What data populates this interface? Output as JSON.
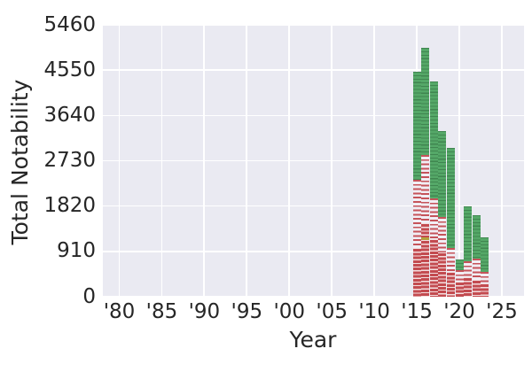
{
  "figure": {
    "background": "#ffffff",
    "plot_background": "#eaeaf2",
    "grid_color": "#ffffff",
    "text_color": "#262626"
  },
  "chart_data": {
    "type": "bar",
    "stacked": true,
    "title": "",
    "xlabel": "Year",
    "ylabel": "Total Notability",
    "grid": true,
    "legend": false,
    "xlim": [
      1978,
      2027.7
    ],
    "ylim": [
      0,
      5460
    ],
    "yticks": [
      0,
      910,
      1820,
      2730,
      3640,
      4550,
      5460
    ],
    "xticks": {
      "values": [
        1980,
        1985,
        1990,
        1995,
        2000,
        2005,
        2010,
        2015,
        2020,
        2025
      ],
      "labels": [
        "'80",
        "'85",
        "'90",
        "'95",
        "'00",
        "'05",
        "'10",
        "'15",
        "'20",
        "'25"
      ]
    },
    "categories": [
      2015,
      2016,
      2017,
      2018,
      2019,
      2020,
      2021,
      2022,
      2023
    ],
    "series": [
      {
        "name": "red-dense-lower",
        "style": "red-dense",
        "color": "#c44e52",
        "values": [
          980,
          1140,
          1155,
          890,
          490,
          300,
          390,
          340,
          265
        ]
      },
      {
        "name": "yellow-segment",
        "style": "yellow",
        "color": "#b3a23e",
        "values": [
          0,
          55,
          0,
          0,
          0,
          0,
          0,
          0,
          0
        ]
      },
      {
        "name": "red-dense-upper",
        "style": "red-dense",
        "color": "#c44e52",
        "values": [
          0,
          285,
          0,
          0,
          0,
          0,
          0,
          0,
          0
        ]
      },
      {
        "name": "red-sparse",
        "style": "red-sparse",
        "color": "#c44e52",
        "values": [
          1370,
          1370,
          815,
          720,
          490,
          240,
          320,
          425,
          225
        ]
      },
      {
        "name": "green",
        "style": "green",
        "color": "#55a868",
        "values": [
          2160,
          2150,
          2350,
          1720,
          2000,
          215,
          1105,
          875,
          700
        ]
      }
    ],
    "totals": [
      4510,
      5000,
      4320,
      3330,
      2980,
      755,
      1815,
      1640,
      1190
    ],
    "red_totals": [
      2350,
      2850,
      1970,
      1610,
      980,
      540,
      710,
      765,
      490
    ]
  }
}
